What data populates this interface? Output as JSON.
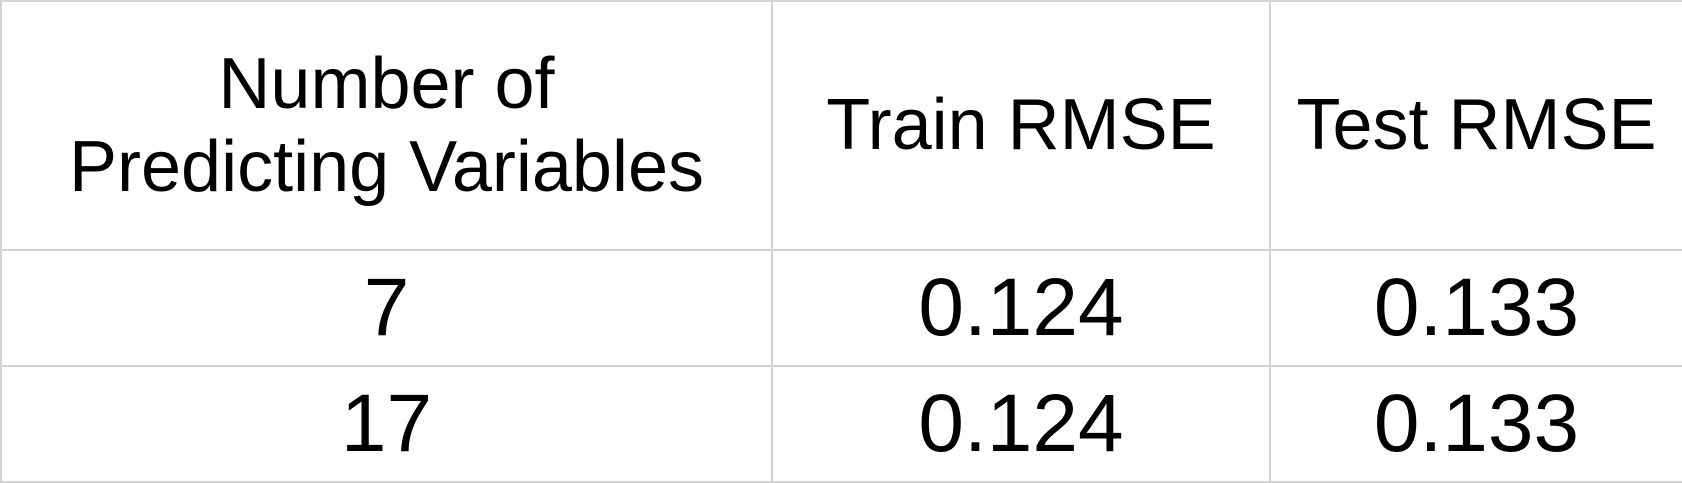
{
  "table": {
    "headers": [
      [
        "Number of",
        "Predicting Variables"
      ],
      [
        "Train RMSE"
      ],
      [
        "Test RMSE"
      ]
    ],
    "rows": [
      [
        "7",
        "0.124",
        "0.133"
      ],
      [
        "17",
        "0.124",
        "0.133"
      ]
    ]
  }
}
